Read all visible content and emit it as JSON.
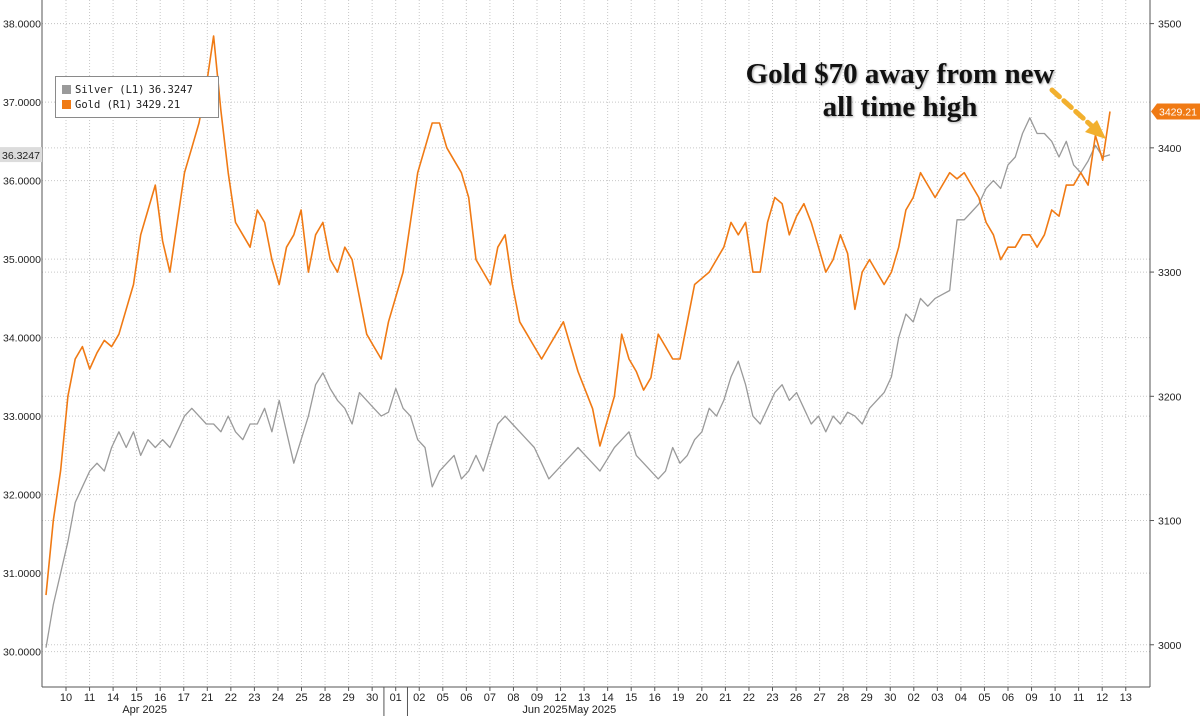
{
  "annotation": {
    "line1": "Gold $70 away from new",
    "line2": "all time high"
  },
  "legend": [
    {
      "label": "Silver (L1)",
      "value": "36.3247",
      "color": "#9a9a9a"
    },
    {
      "label": "Gold (R1)",
      "value": "3429.21",
      "color": "#f07a14"
    }
  ],
  "colors": {
    "silver": "#9a9a9a",
    "gold": "#f07a14",
    "arrow": "#f2b02e",
    "grid": "#c8c8c8"
  },
  "chart_data": {
    "type": "line",
    "x_tick_labels": [
      "10",
      "11",
      "14",
      "15",
      "16",
      "17",
      "21",
      "22",
      "23",
      "24",
      "25",
      "28",
      "29",
      "30",
      "01",
      "02",
      "05",
      "06",
      "07",
      "08",
      "09",
      "12",
      "13",
      "14",
      "15",
      "16",
      "19",
      "20",
      "21",
      "22",
      "23",
      "26",
      "27",
      "28",
      "29",
      "30",
      "02",
      "03",
      "04",
      "05",
      "06",
      "09",
      "10",
      "11",
      "12",
      "13"
    ],
    "month_labels": [
      {
        "label": "Apr 2025",
        "at_tick": "15"
      },
      {
        "label": "May 2025",
        "at_tick": "13"
      },
      {
        "label": "Jun 2025",
        "at_tick": "09"
      }
    ],
    "left_axis": {
      "ticks": [
        "30.0000",
        "31.0000",
        "32.0000",
        "33.0000",
        "34.0000",
        "35.0000",
        "36.0000",
        "37.0000",
        "38.0000"
      ],
      "range": [
        29.55,
        38.3
      ]
    },
    "right_axis": {
      "ticks": [
        "3000",
        "3100",
        "3200",
        "3300",
        "3400",
        "3500"
      ],
      "range": [
        2966,
        3519
      ]
    },
    "last_values": {
      "silver": "36.3247",
      "gold": "3429.21"
    },
    "grid": true,
    "legend_position": "top-left",
    "series": [
      {
        "name": "Silver (L1)",
        "axis": "left",
        "values": [
          30.05,
          30.6,
          31.0,
          31.4,
          31.9,
          32.1,
          32.3,
          32.4,
          32.3,
          32.6,
          32.8,
          32.6,
          32.8,
          32.5,
          32.7,
          32.6,
          32.7,
          32.6,
          32.8,
          33.0,
          33.1,
          33.0,
          32.9,
          32.9,
          32.8,
          33.0,
          32.8,
          32.7,
          32.9,
          32.9,
          33.1,
          32.8,
          33.2,
          32.8,
          32.4,
          32.7,
          33.0,
          33.4,
          33.55,
          33.35,
          33.2,
          33.1,
          32.9,
          33.3,
          33.2,
          33.1,
          33.0,
          33.05,
          33.35,
          33.1,
          33.0,
          32.7,
          32.6,
          32.1,
          32.3,
          32.4,
          32.5,
          32.2,
          32.3,
          32.5,
          32.3,
          32.6,
          32.9,
          33.0,
          32.9,
          32.8,
          32.7,
          32.6,
          32.4,
          32.2,
          32.3,
          32.4,
          32.5,
          32.6,
          32.5,
          32.4,
          32.3,
          32.45,
          32.6,
          32.7,
          32.8,
          32.5,
          32.4,
          32.3,
          32.2,
          32.3,
          32.6,
          32.4,
          32.5,
          32.7,
          32.8,
          33.1,
          33.0,
          33.2,
          33.5,
          33.7,
          33.4,
          33.0,
          32.9,
          33.1,
          33.3,
          33.4,
          33.2,
          33.3,
          33.1,
          32.9,
          33.0,
          32.8,
          33.0,
          32.9,
          33.05,
          33.0,
          32.9,
          33.1,
          33.2,
          33.3,
          33.5,
          34.0,
          34.3,
          34.2,
          34.5,
          34.4,
          34.5,
          34.55,
          34.6,
          35.5,
          35.5,
          35.6,
          35.7,
          35.9,
          36.0,
          35.9,
          36.2,
          36.3,
          36.6,
          36.8,
          36.6,
          36.6,
          36.5,
          36.3,
          36.5,
          36.2,
          36.1,
          36.25,
          36.45,
          36.3,
          36.33
        ]
      },
      {
        "name": "Gold (R1)",
        "axis": "right",
        "values": [
          3040,
          3100,
          3140,
          3200,
          3230,
          3240,
          3222,
          3235,
          3245,
          3240,
          3250,
          3270,
          3290,
          3330,
          3350,
          3370,
          3325,
          3300,
          3340,
          3380,
          3400,
          3420,
          3450,
          3490,
          3430,
          3380,
          3340,
          3330,
          3320,
          3350,
          3340,
          3310,
          3290,
          3320,
          3330,
          3350,
          3300,
          3330,
          3340,
          3310,
          3300,
          3320,
          3310,
          3280,
          3250,
          3240,
          3230,
          3260,
          3280,
          3300,
          3340,
          3380,
          3400,
          3420,
          3420,
          3400,
          3390,
          3380,
          3360,
          3310,
          3300,
          3290,
          3320,
          3330,
          3290,
          3260,
          3250,
          3240,
          3230,
          3240,
          3250,
          3260,
          3240,
          3220,
          3205,
          3190,
          3160,
          3180,
          3200,
          3250,
          3230,
          3220,
          3205,
          3215,
          3250,
          3240,
          3230,
          3230,
          3260,
          3290,
          3295,
          3300,
          3310,
          3320,
          3340,
          3330,
          3340,
          3300,
          3300,
          3340,
          3360,
          3355,
          3330,
          3345,
          3355,
          3340,
          3320,
          3300,
          3310,
          3330,
          3315,
          3270,
          3300,
          3310,
          3300,
          3290,
          3300,
          3320,
          3350,
          3360,
          3380,
          3370,
          3360,
          3370,
          3380,
          3375,
          3380,
          3370,
          3360,
          3340,
          3330,
          3310,
          3320,
          3320,
          3330,
          3330,
          3320,
          3330,
          3350,
          3345,
          3370,
          3370,
          3380,
          3370,
          3410,
          3390,
          3429.21
        ]
      }
    ]
  }
}
